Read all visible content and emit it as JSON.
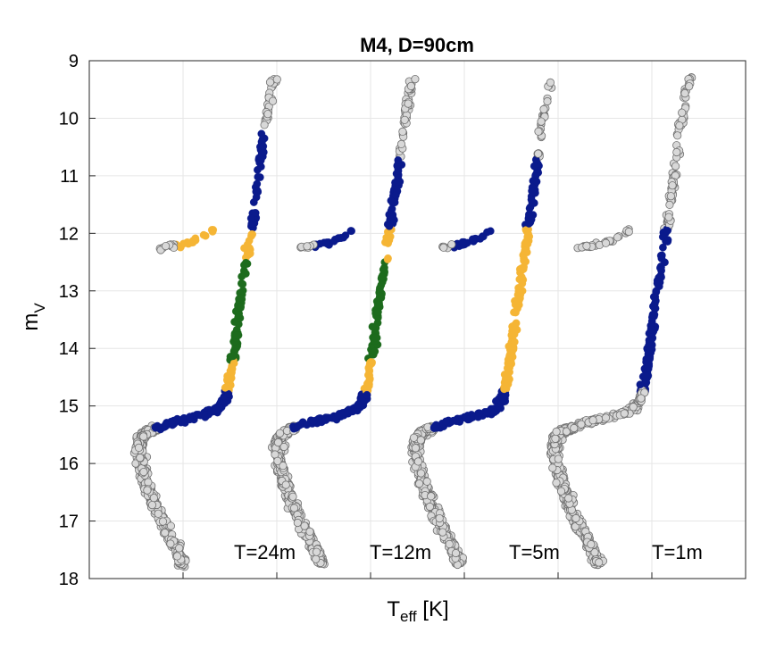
{
  "chart_data": {
    "type": "scatter",
    "title": "M4, D=90cm",
    "xlabel_main": "T",
    "xlabel_sub": "eff",
    "xlabel_unit": " [K]",
    "ylabel_main": "m",
    "ylabel_sub": "V",
    "ylim": [
      9,
      18
    ],
    "y_inverted": true,
    "yticks": [
      "9",
      "10",
      "11",
      "12",
      "13",
      "14",
      "15",
      "16",
      "17",
      "18"
    ],
    "grid": true,
    "colors": {
      "unselected": "#d8d8d8",
      "unselected_edge": "#707070",
      "blue": "#0a1a8c",
      "orange": "#f5b535",
      "green": "#1d6b1d"
    },
    "panels": [
      {
        "label": "T=24m",
        "segments": {
          "sgb": "blue",
          "rgb_bright": "blue",
          "rgb_mid": "orange",
          "rgb_core": "green",
          "hb": "orange"
        }
      },
      {
        "label": "T=12m",
        "segments": {
          "sgb": "blue",
          "rgb_bright": "blue",
          "rgb_mid": "orange",
          "rgb_core": "green",
          "hb": "blue"
        }
      },
      {
        "label": "T=5m",
        "segments": {
          "sgb": "blue",
          "rgb_bright": "blue",
          "rgb_mid": "orange",
          "rgb_core": "orange",
          "hb": "blue"
        }
      },
      {
        "label": "T=1m",
        "segments": {
          "sgb": "gray",
          "rgb_bright": "gray",
          "rgb_mid": "blue",
          "rgb_core": "blue",
          "hb": "gray"
        }
      }
    ]
  }
}
